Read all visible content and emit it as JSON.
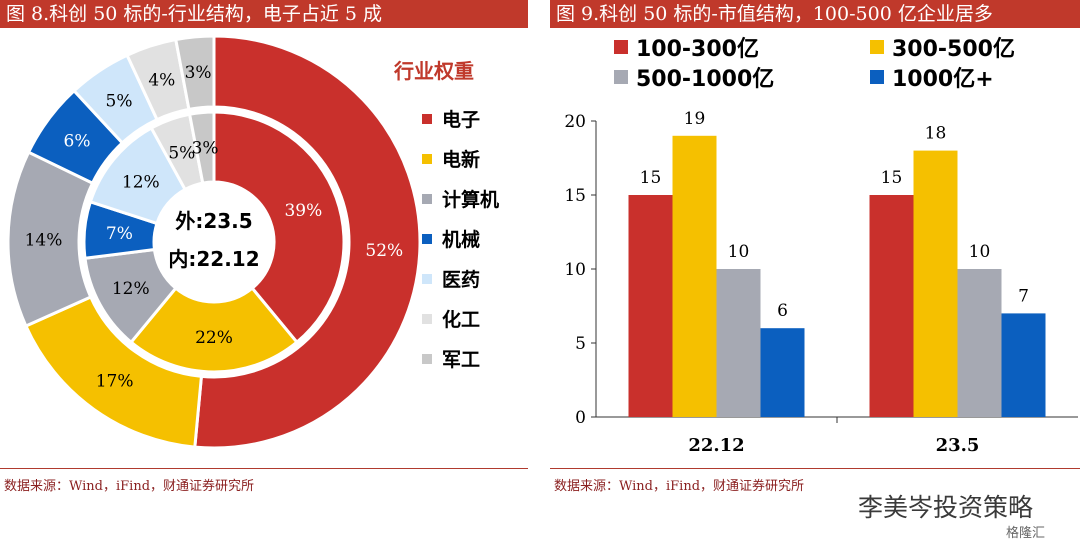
{
  "left_panel": {
    "title": "图 8.科创 50 标的-行业结构，电子占近 5 成",
    "source": "数据来源：Wind，iFind，财通证券研究所",
    "heading": "行业权重",
    "center_outer": "外:23.5",
    "center_inner": "内:22.12"
  },
  "right_panel": {
    "title": "图 9.科创 50 标的-市值结构，100-500 亿企业居多",
    "source": "数据来源：Wind，iFind，财通证券研究所"
  },
  "watermark": {
    "text": "李美岑投资策略",
    "brand": "格隆汇"
  },
  "colors": {
    "title_bg": "#c0392b",
    "电子": "#c9302c",
    "电新": "#f5c000",
    "计算机": "#a6a9b3",
    "机械": "#0b5fbf",
    "医药": "#cfe6fa",
    "化工": "#e1e1e1",
    "军工": "#c8c8c8",
    "100-300亿": "#c9302c",
    "300-500亿": "#f5c000",
    "500-1000亿": "#a6a9b3",
    "1000亿+": "#0b5fbf"
  },
  "chart_data": [
    {
      "type": "pie",
      "subtype": "double donut",
      "legend": [
        "电子",
        "电新",
        "计算机",
        "机械",
        "医药",
        "化工",
        "军工"
      ],
      "legend_position": "right",
      "series": [
        {
          "name": "外:23.5",
          "categories": [
            "电子",
            "电新",
            "计算机",
            "机械",
            "医药",
            "化工",
            "军工"
          ],
          "values": [
            52,
            17,
            14,
            6,
            5,
            4,
            3
          ],
          "labels": [
            "52%",
            "17%",
            "14%",
            "6%",
            "5%",
            "4%",
            "3%"
          ]
        },
        {
          "name": "内:22.12",
          "categories": [
            "电子",
            "电新",
            "计算机",
            "机械",
            "医药",
            "化工",
            "军工"
          ],
          "values": [
            39,
            22,
            12,
            7,
            12,
            5,
            3
          ],
          "labels": [
            "39%",
            "22%",
            "12%",
            "7%",
            "12%",
            "5%",
            "3%"
          ]
        }
      ]
    },
    {
      "type": "bar",
      "categories": [
        "22.12",
        "23.5"
      ],
      "series": [
        {
          "name": "100-300亿",
          "values": [
            15,
            15
          ]
        },
        {
          "name": "300-500亿",
          "values": [
            19,
            18
          ]
        },
        {
          "name": "500-1000亿",
          "values": [
            10,
            10
          ]
        },
        {
          "name": "1000亿+",
          "values": [
            6,
            7
          ]
        }
      ],
      "ylim": [
        0,
        20
      ],
      "yticks": [
        "0",
        "5",
        "10",
        "15",
        "20"
      ],
      "grid": false,
      "legend_position": "top"
    }
  ]
}
